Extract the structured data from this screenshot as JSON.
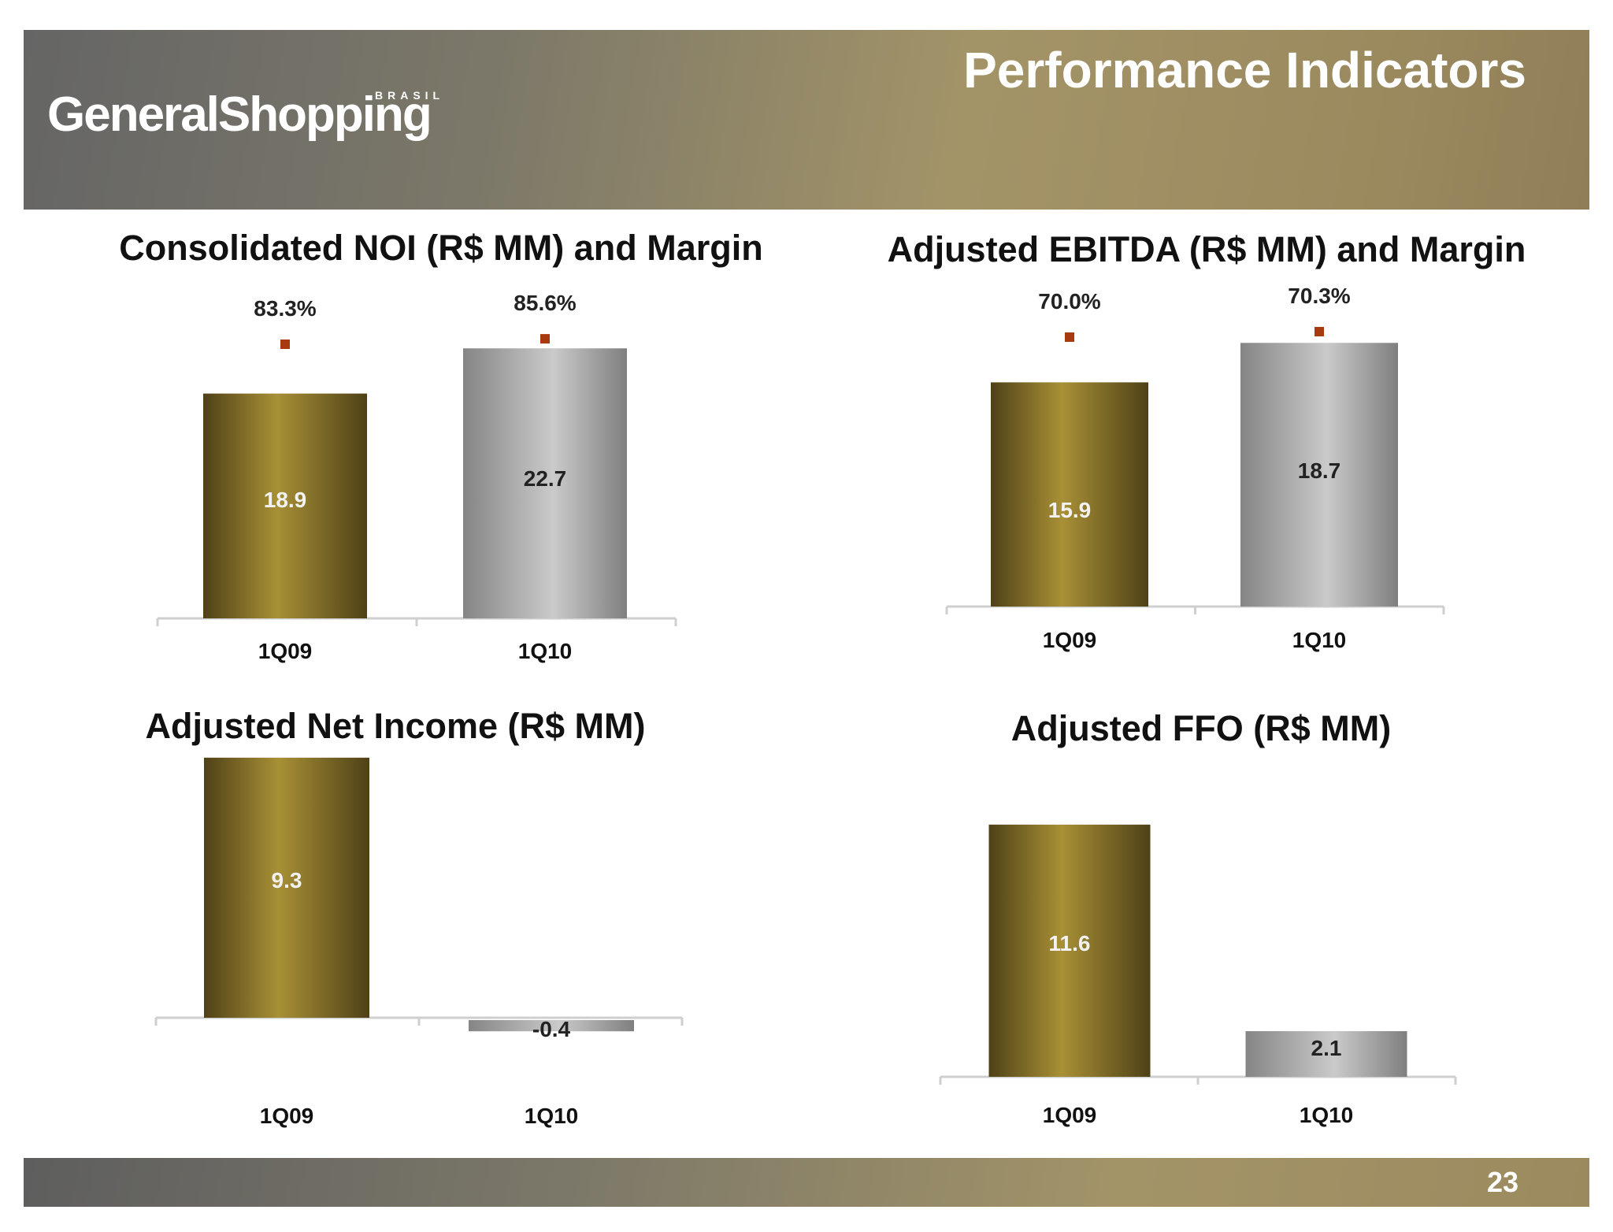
{
  "header": {
    "logo_text": "GeneralShopping",
    "logo_sub": "BRASIL",
    "title": "Performance Indicators"
  },
  "footer": {
    "page_number": "23"
  },
  "colors": {
    "gold": "#a08a35",
    "gold_dark": "#544518",
    "silver": "#c2c2c2",
    "silver_dark": "#858585",
    "marker": "#a83a10"
  },
  "chart_data": [
    {
      "type": "bar",
      "title": "Consolidated NOI (R$ MM) and Margin",
      "categories": [
        "1Q09",
        "1Q10"
      ],
      "values": [
        18.9,
        22.7
      ],
      "value_labels": [
        "18.9",
        "22.7"
      ],
      "margin_labels": [
        "83.3%",
        "85.6%"
      ],
      "margin_values": [
        83.3,
        85.6
      ]
    },
    {
      "type": "bar",
      "title": "Adjusted EBITDA (R$ MM) and Margin",
      "categories": [
        "1Q09",
        "1Q10"
      ],
      "values": [
        15.9,
        18.7
      ],
      "value_labels": [
        "15.9",
        "18.7"
      ],
      "margin_labels": [
        "70.0%",
        "70.3%"
      ],
      "margin_values": [
        70.0,
        70.3
      ]
    },
    {
      "type": "bar",
      "title": "Adjusted Net Income (R$ MM)",
      "categories": [
        "1Q09",
        "1Q10"
      ],
      "values": [
        9.3,
        -0.4
      ],
      "value_labels": [
        "9.3",
        "-0.4"
      ]
    },
    {
      "type": "bar",
      "title": "Adjusted FFO (R$ MM)",
      "categories": [
        "1Q09",
        "1Q10"
      ],
      "values": [
        11.6,
        2.1
      ],
      "value_labels": [
        "11.6",
        "2.1"
      ]
    }
  ]
}
